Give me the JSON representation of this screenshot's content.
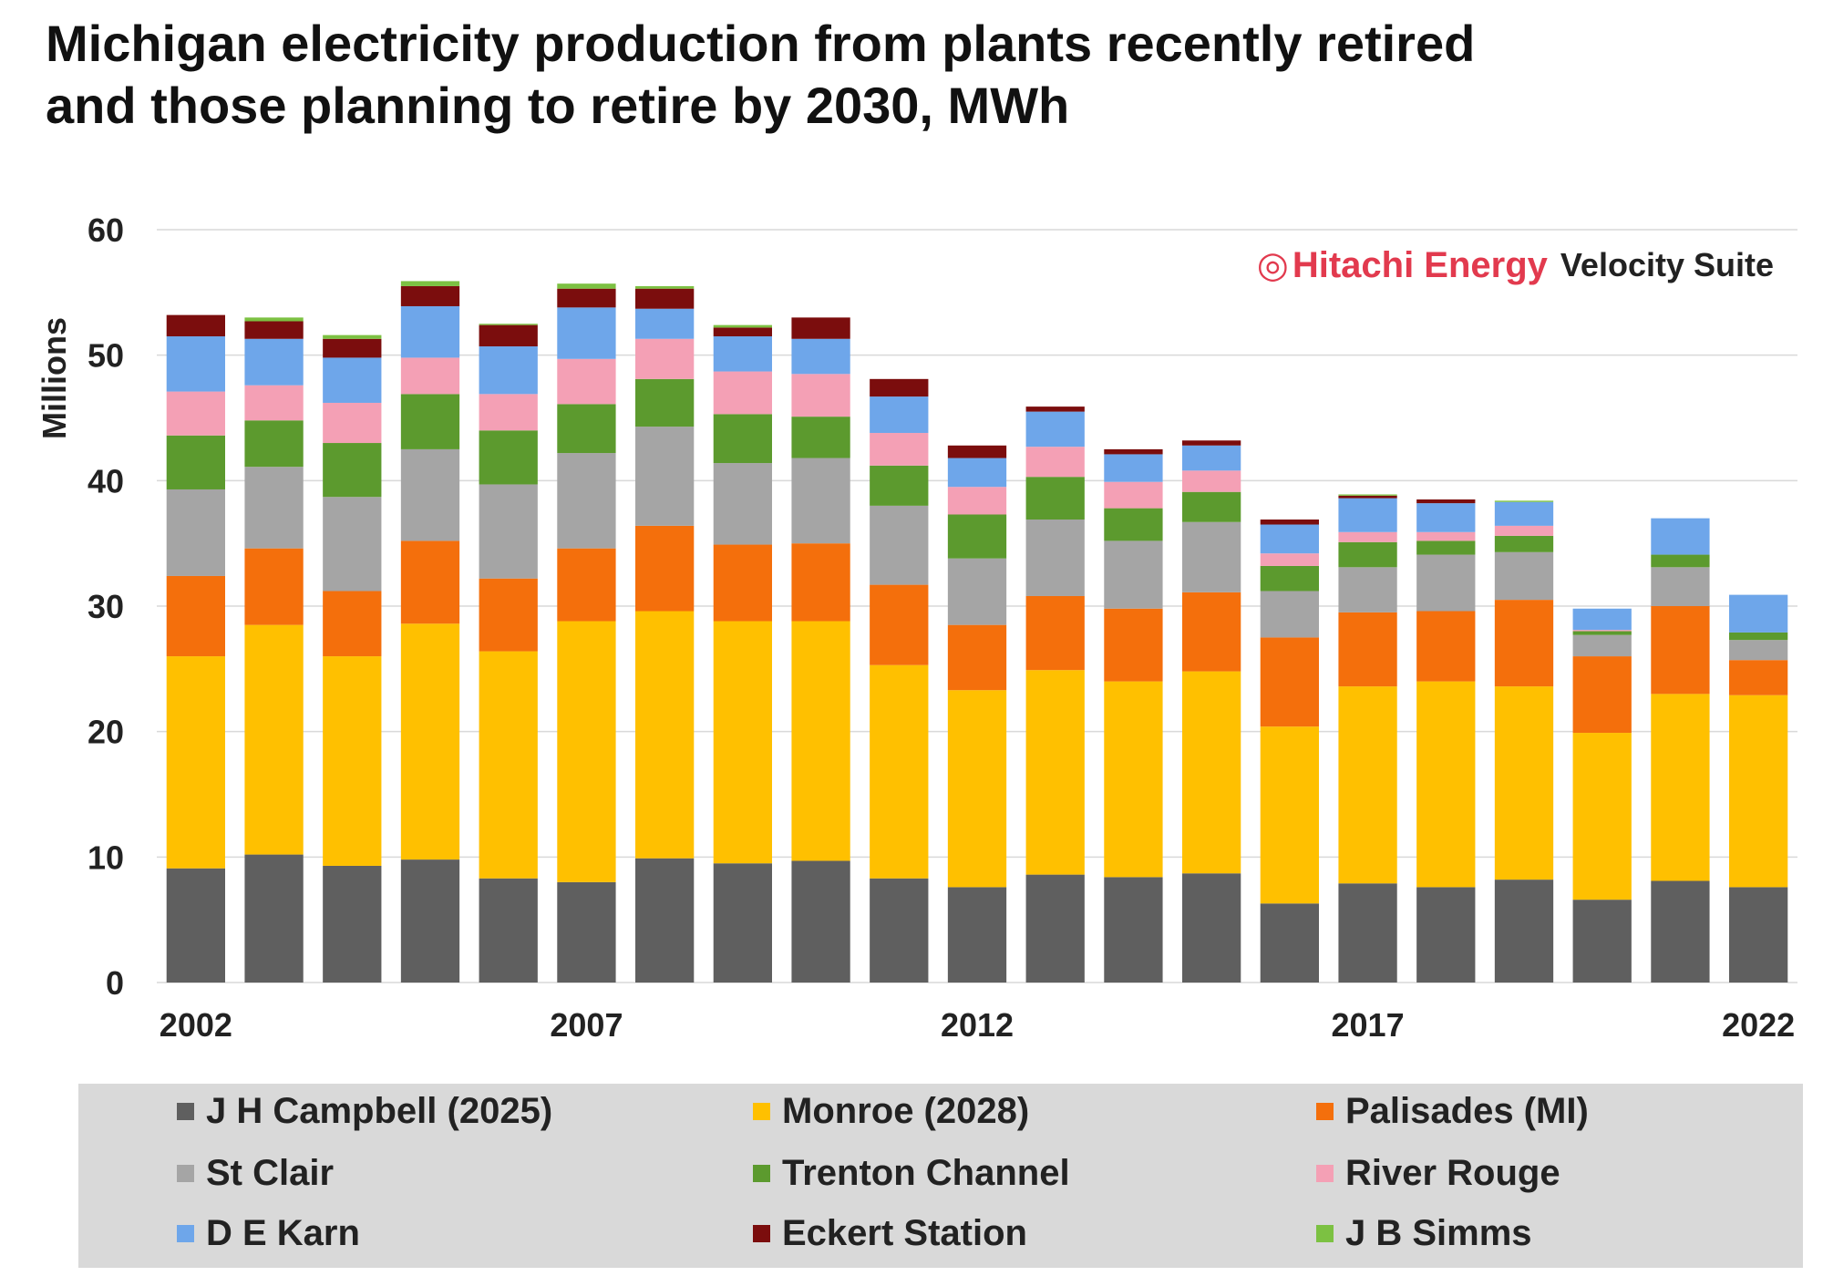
{
  "title": "Michigan electricity production from plants recently retired and those planning to retire by 2030, MWh",
  "brand": {
    "logo": "◎",
    "name": "Hitachi Energy",
    "suite": "Velocity Suite",
    "color": "#e23a4e"
  },
  "chart_data": {
    "type": "bar",
    "stacked": true,
    "ylabel": "Millions",
    "ylim": [
      0,
      60
    ],
    "yticks": [
      0,
      10,
      20,
      30,
      40,
      50,
      60
    ],
    "grid": true,
    "legend_position": "bottom",
    "categories": [
      "2002",
      "2003",
      "2004",
      "2005",
      "2006",
      "2007",
      "2008",
      "2009",
      "2010",
      "2011",
      "2012",
      "2013",
      "2014",
      "2015",
      "2016",
      "2017",
      "2018",
      "2019",
      "2020",
      "2021",
      "2022"
    ],
    "tick_labels": {
      "2002": "2002",
      "2007": "2007",
      "2012": "2012",
      "2017": "2017",
      "2022": "2022"
    },
    "series": [
      {
        "name": "J H Campbell (2025)",
        "color": "#5f5f5f",
        "values": [
          9.1,
          10.2,
          9.3,
          9.8,
          8.3,
          8.0,
          9.9,
          9.5,
          9.7,
          8.3,
          7.6,
          8.6,
          8.4,
          8.7,
          6.3,
          7.9,
          7.6,
          8.2,
          6.6,
          8.1,
          7.6
        ]
      },
      {
        "name": "Monroe (2028)",
        "color": "#ffc000",
        "values": [
          16.9,
          18.3,
          16.7,
          18.8,
          18.1,
          20.8,
          19.7,
          19.3,
          19.1,
          17.0,
          15.7,
          16.3,
          15.6,
          16.1,
          14.1,
          15.7,
          16.4,
          15.4,
          13.3,
          14.9,
          15.3
        ]
      },
      {
        "name": "Palisades (MI)",
        "color": "#f46f0c",
        "values": [
          6.4,
          6.1,
          5.2,
          6.6,
          5.8,
          5.8,
          6.8,
          6.1,
          6.2,
          6.4,
          5.2,
          5.9,
          5.8,
          6.3,
          7.1,
          5.9,
          5.6,
          6.9,
          6.1,
          7.0,
          2.8
        ]
      },
      {
        "name": "St Clair",
        "color": "#a5a5a5",
        "values": [
          6.9,
          6.5,
          7.5,
          7.3,
          7.5,
          7.6,
          7.9,
          6.5,
          6.8,
          6.3,
          5.3,
          6.1,
          5.4,
          5.6,
          3.7,
          3.6,
          4.5,
          3.8,
          1.7,
          3.1,
          1.6
        ]
      },
      {
        "name": "Trenton Channel",
        "color": "#5c9a2e",
        "values": [
          4.3,
          3.7,
          4.3,
          4.4,
          4.3,
          3.9,
          3.8,
          3.9,
          3.3,
          3.2,
          3.5,
          3.4,
          2.6,
          2.4,
          2.0,
          2.0,
          1.1,
          1.3,
          0.3,
          1.0,
          0.6
        ]
      },
      {
        "name": "River Rouge",
        "color": "#f4a0b5",
        "values": [
          3.5,
          2.8,
          3.2,
          2.9,
          2.9,
          3.6,
          3.2,
          3.4,
          3.4,
          2.6,
          2.2,
          2.4,
          2.1,
          1.7,
          1.0,
          0.8,
          0.7,
          0.8,
          0.1,
          0.0,
          0.0
        ]
      },
      {
        "name": "D E Karn",
        "color": "#6ea6ea",
        "values": [
          4.4,
          3.7,
          3.6,
          4.1,
          3.8,
          4.1,
          2.4,
          2.8,
          2.8,
          2.9,
          2.3,
          2.8,
          2.2,
          2.0,
          2.3,
          2.7,
          2.3,
          1.9,
          1.7,
          2.9,
          3.0
        ]
      },
      {
        "name": "Eckert Station",
        "color": "#7b0d0d",
        "values": [
          1.7,
          1.4,
          1.5,
          1.6,
          1.7,
          1.5,
          1.6,
          0.7,
          1.7,
          1.4,
          1.0,
          0.4,
          0.4,
          0.4,
          0.4,
          0.2,
          0.3,
          0.0,
          0.0,
          0.0,
          0.0
        ]
      },
      {
        "name": "J B Simms",
        "color": "#7cc142",
        "values": [
          0.0,
          0.3,
          0.3,
          0.4,
          0.1,
          0.4,
          0.2,
          0.2,
          0.0,
          0.0,
          0.0,
          0.0,
          0.0,
          0.0,
          0.0,
          0.1,
          0.0,
          0.1,
          0.0,
          0.0,
          0.0
        ]
      }
    ]
  }
}
